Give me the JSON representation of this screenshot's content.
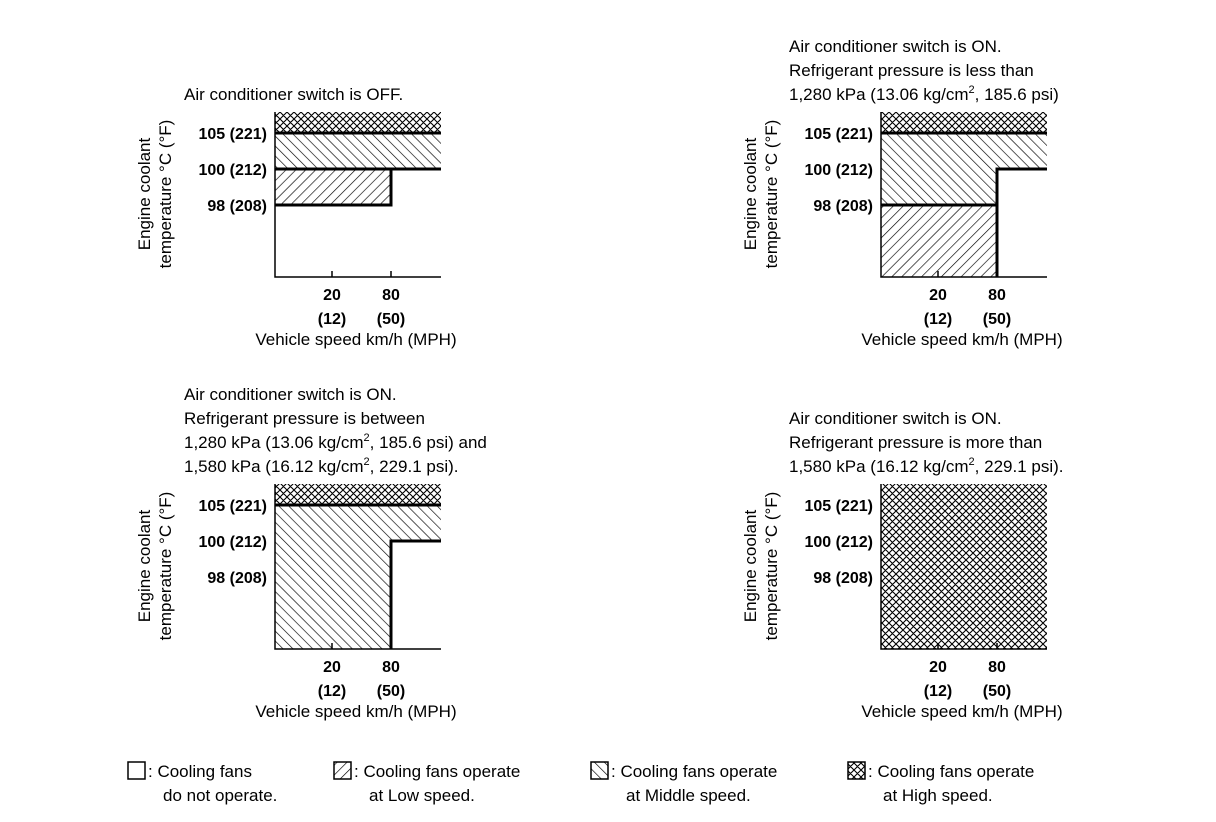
{
  "charts": [
    {
      "id": "off",
      "title_lines": [
        "Air conditioner switch is OFF."
      ],
      "y_ticks": [
        "105 (221)",
        "100 (212)",
        "98 (208)"
      ],
      "x_ticks_speed": [
        "20",
        "80"
      ],
      "x_ticks_mph": [
        "(12)",
        "(50)"
      ],
      "xlabel": "Vehicle speed km/h (MPH)",
      "ylabel_lines": [
        "Engine coolant",
        "temperature °C (°F)"
      ]
    },
    {
      "id": "low-pressure",
      "title_lines": [
        "Air conditioner switch is ON.",
        "Refrigerant pressure is less than",
        "1,280 kPa (13.06 kg/cm2, 185.6 psi)"
      ],
      "y_ticks": [
        "105 (221)",
        "100 (212)",
        "98 (208)"
      ],
      "x_ticks_speed": [
        "20",
        "80"
      ],
      "x_ticks_mph": [
        "(12)",
        "(50)"
      ],
      "xlabel": "Vehicle speed km/h (MPH)",
      "ylabel_lines": [
        "Engine coolant",
        "temperature °C (°F)"
      ]
    },
    {
      "id": "mid-pressure",
      "title_lines": [
        "Air conditioner switch is ON.",
        "Refrigerant pressure is between",
        "1,280 kPa (13.06 kg/cm2, 185.6 psi) and",
        "1,580 kPa (16.12 kg/cm2, 229.1 psi)."
      ],
      "y_ticks": [
        "105 (221)",
        "100 (212)",
        "98 (208)"
      ],
      "x_ticks_speed": [
        "20",
        "80"
      ],
      "x_ticks_mph": [
        "(12)",
        "(50)"
      ],
      "xlabel": "Vehicle speed km/h (MPH)",
      "ylabel_lines": [
        "Engine coolant",
        "temperature °C (°F)"
      ]
    },
    {
      "id": "high-pressure",
      "title_lines": [
        "Air conditioner switch is ON.",
        "Refrigerant pressure is more than",
        "1,580 kPa (16.12 kg/cm2, 229.1 psi)."
      ],
      "y_ticks": [
        "105 (221)",
        "100 (212)",
        "98 (208)"
      ],
      "x_ticks_speed": [
        "20",
        "80"
      ],
      "x_ticks_mph": [
        "(12)",
        "(50)"
      ],
      "xlabel": "Vehicle speed km/h (MPH)",
      "ylabel_lines": [
        "Engine coolant",
        "temperature °C (°F)"
      ]
    }
  ],
  "legend": [
    {
      "pattern": "none",
      "lines": [
        ": Cooling fans",
        "do not operate."
      ]
    },
    {
      "pattern": "low",
      "lines": [
        ": Cooling fans operate",
        "at Low speed."
      ]
    },
    {
      "pattern": "mid",
      "lines": [
        ": Cooling fans operate",
        "at Middle speed."
      ]
    },
    {
      "pattern": "high",
      "lines": [
        ": Cooling fans operate",
        "at High speed."
      ]
    }
  ]
}
